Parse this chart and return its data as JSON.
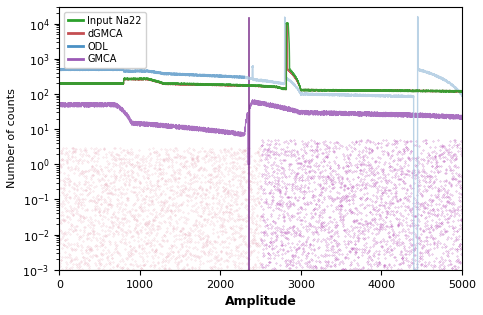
{
  "title": "",
  "xlabel": "Amplitude",
  "ylabel": "Number of counts",
  "xlim": [
    0,
    5000
  ],
  "ylim": [
    0.001,
    30000.0
  ],
  "legend_labels": [
    "Input Na22",
    "dGMCA",
    "ODL",
    "GMCA"
  ],
  "colors": {
    "input": "#2ca02c",
    "dgmca": "#c44e52",
    "odl": "#4a90c4",
    "odl_light": "#aac8e0",
    "gmca_dark": "#7b2d8b",
    "gmca_pink": "#e8a0b0"
  },
  "n_points": 5000,
  "seed": 42
}
